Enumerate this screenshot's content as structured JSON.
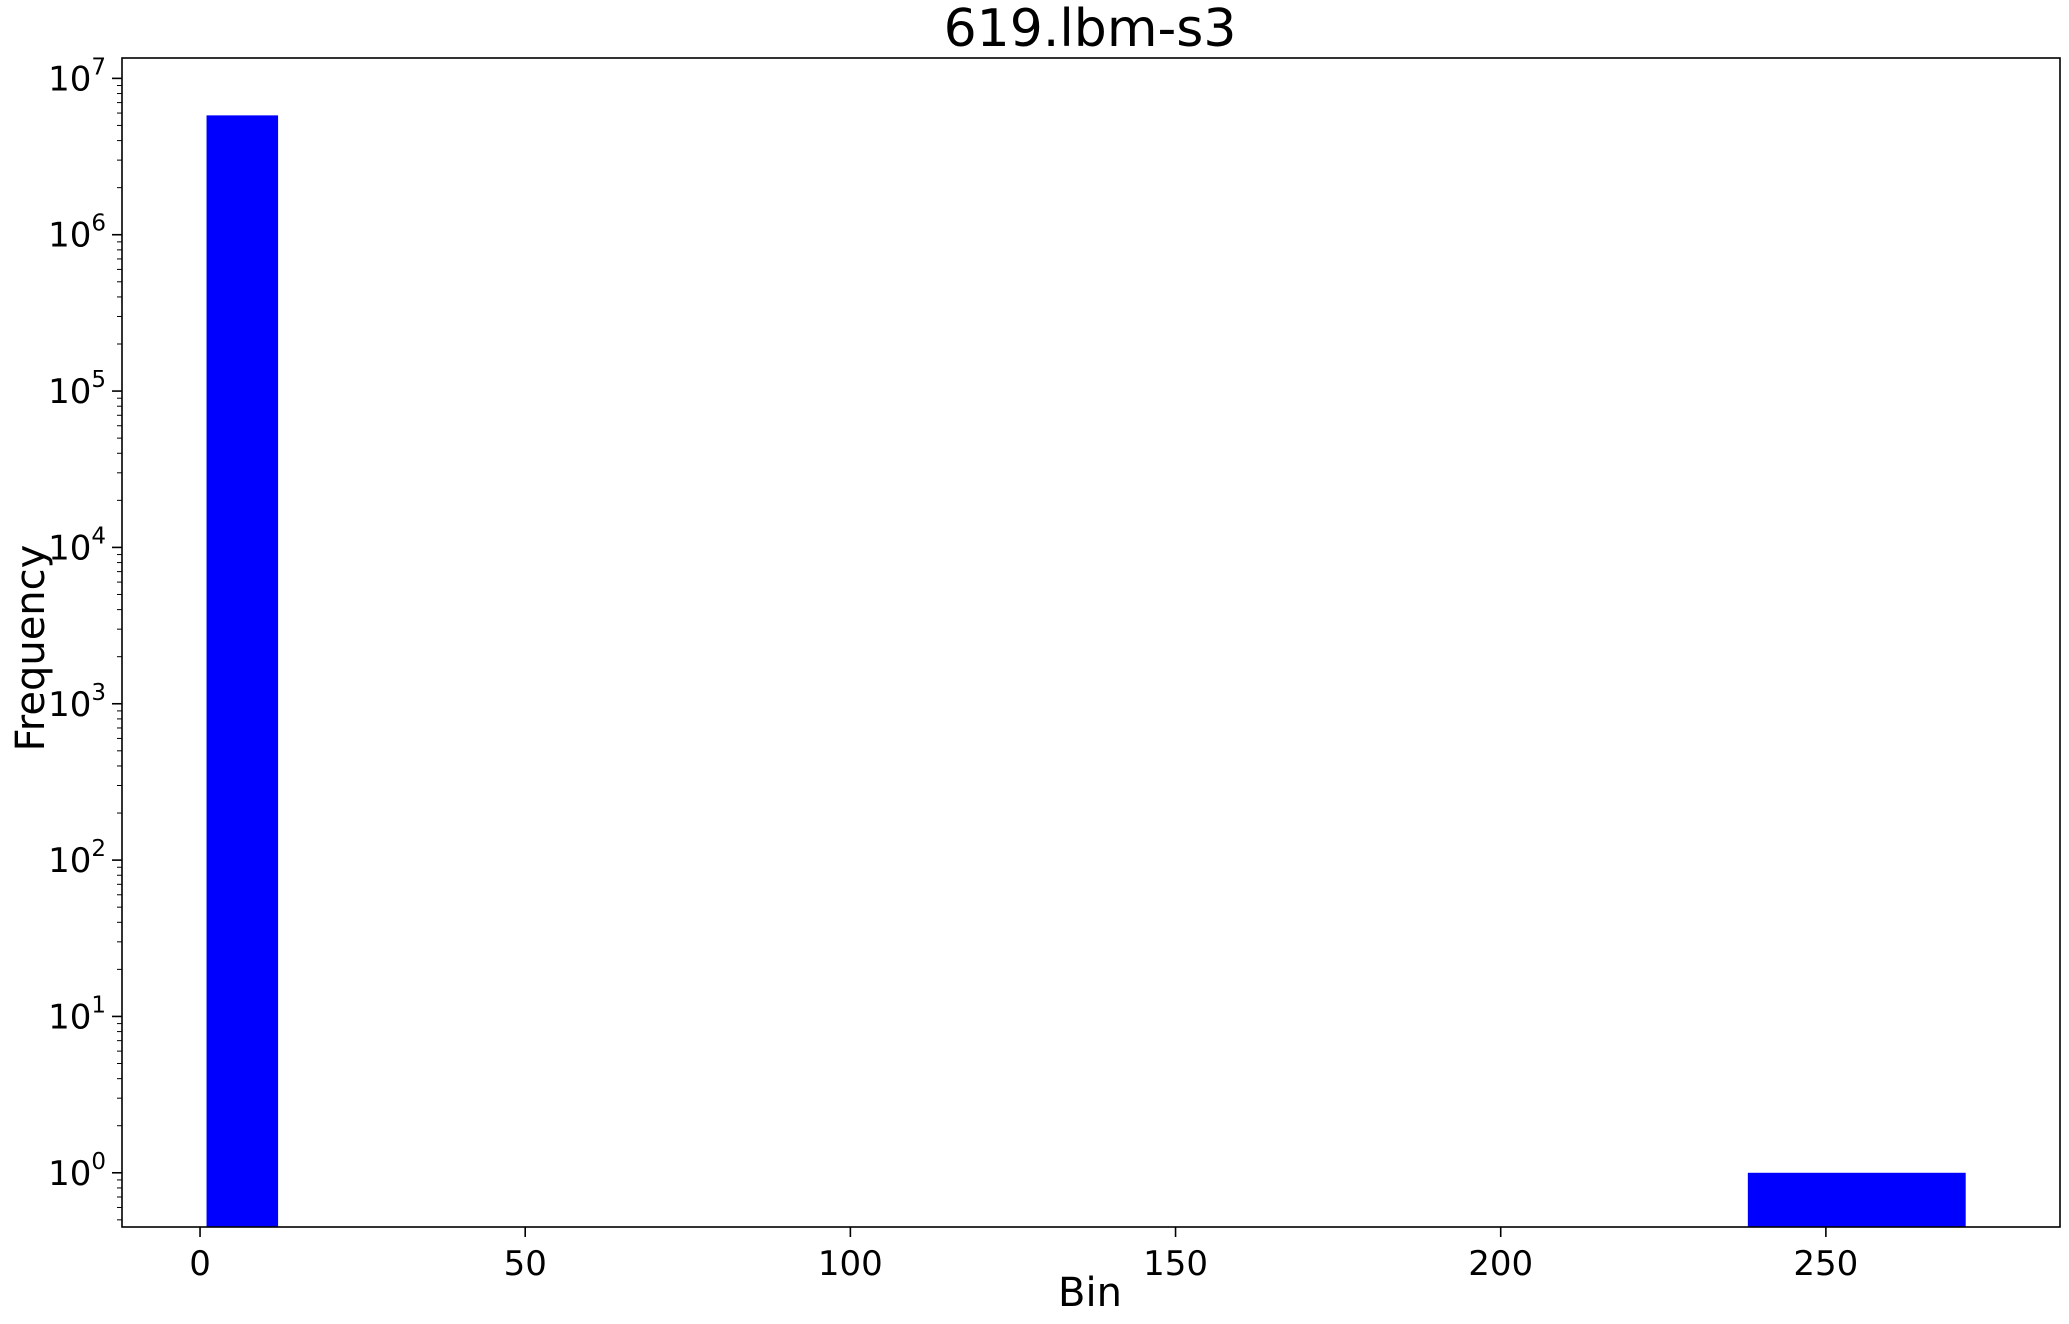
{
  "chart_data": {
    "type": "bar",
    "title": "619.lbm-s3",
    "xlabel": "Bin",
    "ylabel": "Frequency",
    "yscale": "log",
    "xlim": [
      -12,
      286
    ],
    "ylim": [
      0.45,
      13500000
    ],
    "x_ticks": [
      0,
      50,
      100,
      150,
      200,
      250
    ],
    "x_tick_labels": [
      "0",
      "50",
      "100",
      "150",
      "200",
      "250"
    ],
    "y_ticks": [
      1,
      10,
      100,
      1000,
      10000,
      100000,
      1000000,
      10000000
    ],
    "y_tick_labels": [
      {
        "base": "10",
        "exp": "0"
      },
      {
        "base": "10",
        "exp": "1"
      },
      {
        "base": "10",
        "exp": "2"
      },
      {
        "base": "10",
        "exp": "3"
      },
      {
        "base": "10",
        "exp": "4"
      },
      {
        "base": "10",
        "exp": "5"
      },
      {
        "base": "10",
        "exp": "6"
      },
      {
        "base": "10",
        "exp": "7"
      }
    ],
    "bars": [
      {
        "x_start": 1,
        "x_end": 12,
        "value": 5800000
      },
      {
        "x_start": 238,
        "x_end": 271.5,
        "value": 1
      }
    ],
    "bar_color": "#0000ff",
    "grid": false,
    "legend": false
  }
}
